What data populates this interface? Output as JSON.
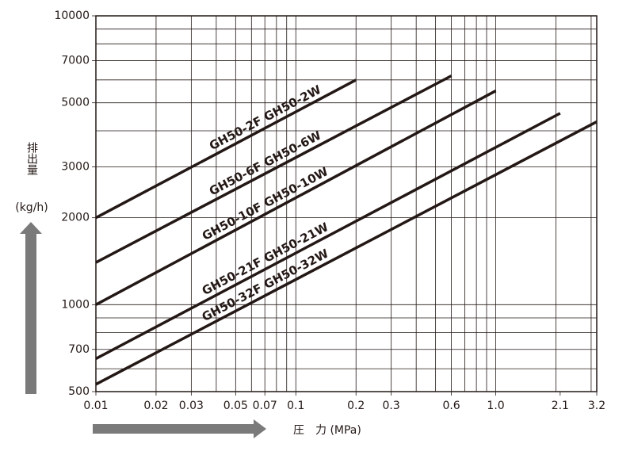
{
  "chart_data": {
    "type": "line",
    "log_x": true,
    "log_y": true,
    "grid": true,
    "x_label": "圧　力 (MPa)",
    "y_label": "排出量",
    "y_unit": "(kg/h)",
    "xlim": [
      0.01,
      3.2
    ],
    "ylim": [
      500,
      10000
    ],
    "xticks": [
      0.01,
      0.02,
      0.03,
      0.05,
      0.07,
      0.1,
      0.2,
      0.3,
      0.6,
      {
        "value": 1,
        "label": "1.0"
      },
      2.1,
      3.2
    ],
    "yticks": [
      500,
      700,
      1000,
      2000,
      3000,
      5000,
      7000,
      10000
    ],
    "xgrid": [
      0.02,
      0.03,
      0.04,
      0.05,
      0.06,
      0.07,
      0.08,
      0.09,
      0.1,
      0.2,
      0.3,
      0.4,
      0.5,
      0.6,
      0.7,
      0.8,
      0.9,
      1,
      2,
      3
    ],
    "ygrid": [
      600,
      700,
      800,
      900,
      1000,
      2000,
      3000,
      4000,
      5000,
      6000,
      7000,
      8000,
      9000
    ],
    "series": [
      {
        "name": "GH50-2F  GH50-2W",
        "color": "#231815",
        "x": [
          0.01,
          0.2
        ],
        "values": [
          2000,
          6000
        ]
      },
      {
        "name": "GH50-6F  GH50-6W",
        "color": "#231815",
        "x": [
          0.01,
          0.6
        ],
        "values": [
          1400,
          6200
        ]
      },
      {
        "name": "GH50-10F  GH50-10W",
        "color": "#231815",
        "x": [
          0.01,
          1
        ],
        "values": [
          1000,
          5500
        ]
      },
      {
        "name": "GH50-21F  GH50-21W",
        "color": "#231815",
        "x": [
          0.01,
          2.1
        ],
        "values": [
          650,
          4600
        ]
      },
      {
        "name": "GH50-32F  GH50-32W",
        "color": "#231815",
        "x": [
          0.01,
          3.2
        ],
        "values": [
          530,
          4300
        ]
      }
    ]
  }
}
